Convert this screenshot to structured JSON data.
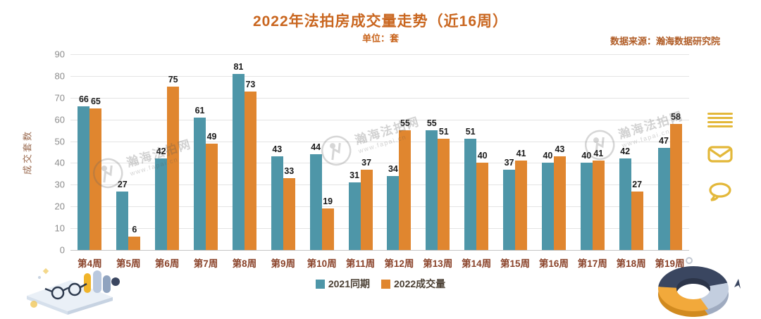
{
  "title": "2022年法拍房成交量走势（近16周）",
  "subtitle": "单位：套",
  "source": "数据来源：瀚海数据研究院",
  "watermark": {
    "brand": "瀚海法拍网",
    "url": "www.fapai.cn"
  },
  "legend": [
    {
      "label": "2021同期",
      "color": "#4E96A8"
    },
    {
      "label": "2022成交量",
      "color": "#E0862F"
    }
  ],
  "chart_data": {
    "type": "bar",
    "title": "2022年法拍房成交量走势（近16周）",
    "unit_label": "单位：套",
    "ylabel": "成交套数",
    "xlabel": "",
    "categories": [
      "第4周",
      "第5周",
      "第6周",
      "第7周",
      "第8周",
      "第9周",
      "第10周",
      "第11周",
      "第12周",
      "第13周",
      "第14周",
      "第15周",
      "第16周",
      "第17周",
      "第18周",
      "第19周"
    ],
    "series": [
      {
        "name": "2021同期",
        "color": "#4E96A8",
        "values": [
          66,
          27,
          42,
          61,
          81,
          43,
          44,
          31,
          34,
          55,
          51,
          37,
          40,
          40,
          42,
          47
        ]
      },
      {
        "name": "2022成交量",
        "color": "#E0862F",
        "values": [
          65,
          6,
          75,
          49,
          73,
          33,
          19,
          37,
          55,
          51,
          40,
          41,
          43,
          41,
          27,
          58
        ]
      }
    ],
    "ylim": [
      0,
      90
    ],
    "ytick_step": 10,
    "grid": true,
    "legend_position": "bottom"
  },
  "side_icons": [
    {
      "name": "menu"
    },
    {
      "name": "mail"
    },
    {
      "name": "chat"
    }
  ],
  "colors": {
    "title": "#C9661F",
    "source": "#B05C26",
    "xtick": "#8A432A",
    "ytick": "#8C8C8C",
    "bar_teal": "#4E96A8",
    "bar_orange": "#E0862F",
    "icon_gold": "#E3B83A"
  }
}
